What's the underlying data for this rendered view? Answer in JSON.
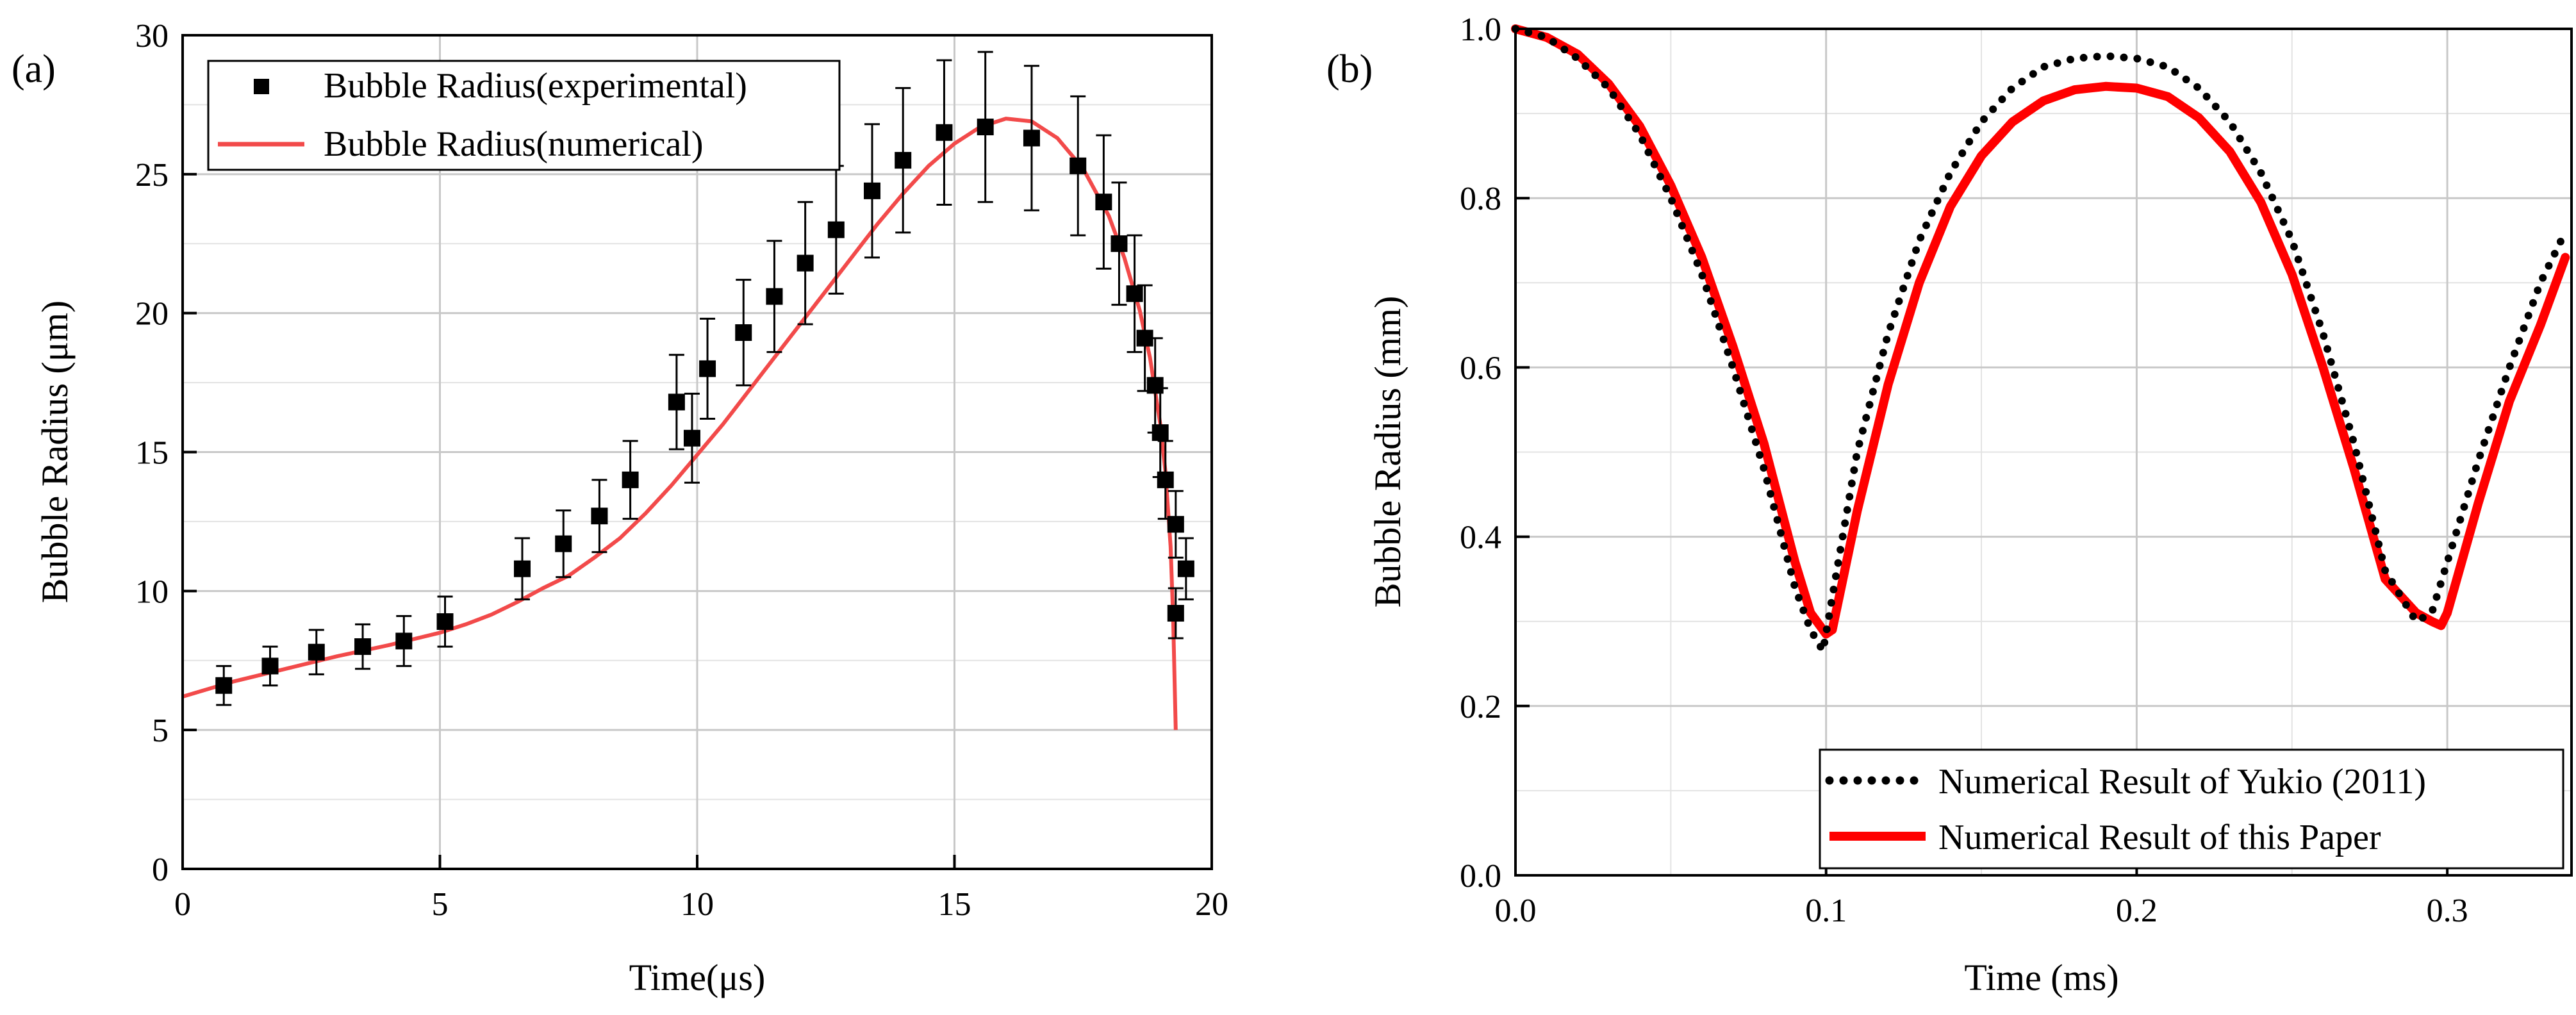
{
  "chart_data": [
    {
      "type": "scatter",
      "panel_label": "(a)",
      "xlabel": "Time(μs)",
      "ylabel": "Bubble Radius (μm)",
      "xlim": [
        0,
        20
      ],
      "ylim": [
        0,
        30
      ],
      "xticks": [
        0,
        5,
        10,
        15,
        20
      ],
      "yticks": [
        0,
        5,
        10,
        15,
        20,
        25,
        30
      ],
      "grid": true,
      "legend_position": "top-left",
      "series": [
        {
          "name": "Bubble Radius(experimental)",
          "kind": "scatter-errorbar",
          "color": "#000000",
          "x": [
            0.8,
            1.7,
            2.6,
            3.5,
            4.3,
            5.1,
            6.6,
            7.4,
            8.1,
            8.7,
            9.6,
            9.9,
            10.2,
            10.9,
            11.5,
            12.1,
            12.7,
            13.4,
            14.0,
            14.8,
            15.6,
            16.5,
            17.4,
            17.9,
            18.2,
            18.5,
            18.7,
            18.9,
            19.0,
            19.1,
            19.3,
            19.3,
            19.5
          ],
          "y": [
            6.6,
            7.3,
            7.8,
            8.0,
            8.2,
            8.9,
            10.8,
            11.7,
            12.7,
            14.0,
            16.8,
            15.5,
            18.0,
            19.3,
            20.6,
            21.8,
            23.0,
            24.4,
            25.5,
            26.5,
            26.7,
            26.3,
            25.3,
            24.0,
            22.5,
            20.7,
            19.1,
            17.4,
            15.7,
            14.0,
            12.4,
            9.2,
            10.8
          ],
          "error": [
            0.7,
            0.7,
            0.8,
            0.8,
            0.9,
            0.9,
            1.1,
            1.2,
            1.3,
            1.4,
            1.7,
            1.6,
            1.8,
            1.9,
            2.0,
            2.2,
            2.3,
            2.4,
            2.6,
            2.6,
            2.7,
            2.6,
            2.5,
            2.4,
            2.2,
            2.1,
            1.9,
            1.7,
            1.6,
            1.4,
            1.2,
            0.9,
            1.1
          ]
        },
        {
          "name": "Bubble Radius(numerical)",
          "kind": "line",
          "color": "#f24a4a",
          "x": [
            0,
            1,
            2,
            3,
            4,
            5,
            5.5,
            6,
            6.5,
            7,
            7.5,
            8,
            8.5,
            9,
            9.5,
            10,
            10.5,
            11,
            11.5,
            12,
            12.5,
            13,
            13.5,
            14,
            14.5,
            15,
            15.5,
            16,
            16.5,
            17,
            17.5,
            18,
            18.3,
            18.6,
            18.8,
            19.0,
            19.1,
            19.2,
            19.25,
            19.3
          ],
          "y": [
            6.2,
            6.75,
            7.2,
            7.65,
            8.05,
            8.5,
            8.8,
            9.15,
            9.6,
            10.1,
            10.55,
            11.2,
            11.9,
            12.8,
            13.8,
            14.9,
            16.0,
            17.2,
            18.4,
            19.6,
            20.8,
            22.0,
            23.2,
            24.3,
            25.3,
            26.1,
            26.7,
            27.0,
            26.9,
            26.3,
            25.2,
            23.5,
            22.0,
            20.1,
            18.4,
            16.0,
            14.3,
            11.6,
            9.0,
            5.0
          ]
        }
      ]
    },
    {
      "type": "line",
      "panel_label": "(b)",
      "xlabel": "Time (ms)",
      "ylabel": "Bubble Radius (mm)",
      "xlim": [
        0,
        0.34
      ],
      "ylim": [
        0,
        1.0
      ],
      "xticks": [
        0.0,
        0.1,
        0.2,
        0.3
      ],
      "xtick_labels": [
        "0.0",
        "0.1",
        "0.2",
        "0.3"
      ],
      "yticks": [
        0.0,
        0.2,
        0.4,
        0.6,
        0.8,
        1.0
      ],
      "ytick_labels": [
        "0.0",
        "0.2",
        "0.4",
        "0.6",
        "0.8",
        "1.0"
      ],
      "grid": true,
      "legend_position": "bottom-right",
      "series": [
        {
          "name": "Numerical Result of Yukio (2011)",
          "style": "dotted",
          "color": "#000000",
          "x": [
            0.0,
            0.01,
            0.02,
            0.03,
            0.04,
            0.05,
            0.06,
            0.07,
            0.08,
            0.09,
            0.095,
            0.099,
            0.103,
            0.11,
            0.12,
            0.13,
            0.14,
            0.15,
            0.16,
            0.17,
            0.18,
            0.19,
            0.2,
            0.21,
            0.22,
            0.23,
            0.24,
            0.25,
            0.26,
            0.27,
            0.28,
            0.29,
            0.295,
            0.3,
            0.31,
            0.32,
            0.33,
            0.338
          ],
          "y": [
            1.0,
            0.99,
            0.965,
            0.93,
            0.875,
            0.8,
            0.71,
            0.6,
            0.48,
            0.34,
            0.29,
            0.265,
            0.35,
            0.5,
            0.64,
            0.75,
            0.83,
            0.89,
            0.93,
            0.955,
            0.965,
            0.968,
            0.965,
            0.955,
            0.93,
            0.89,
            0.83,
            0.75,
            0.64,
            0.51,
            0.36,
            0.3,
            0.31,
            0.37,
            0.49,
            0.6,
            0.7,
            0.76
          ]
        },
        {
          "name": "Numerical Result of this Paper",
          "style": "solid",
          "color": "#ff0000",
          "x": [
            0.0,
            0.01,
            0.02,
            0.03,
            0.04,
            0.05,
            0.06,
            0.07,
            0.08,
            0.09,
            0.095,
            0.1,
            0.102,
            0.11,
            0.12,
            0.13,
            0.14,
            0.15,
            0.16,
            0.17,
            0.18,
            0.19,
            0.2,
            0.21,
            0.22,
            0.23,
            0.24,
            0.25,
            0.26,
            0.27,
            0.28,
            0.29,
            0.295,
            0.298,
            0.3,
            0.31,
            0.32,
            0.33,
            0.338
          ],
          "y": [
            1.0,
            0.99,
            0.97,
            0.935,
            0.885,
            0.815,
            0.73,
            0.625,
            0.51,
            0.37,
            0.31,
            0.285,
            0.29,
            0.43,
            0.58,
            0.7,
            0.79,
            0.85,
            0.89,
            0.915,
            0.928,
            0.932,
            0.93,
            0.92,
            0.895,
            0.855,
            0.795,
            0.71,
            0.6,
            0.48,
            0.35,
            0.31,
            0.3,
            0.295,
            0.31,
            0.44,
            0.56,
            0.65,
            0.73
          ]
        }
      ]
    }
  ]
}
